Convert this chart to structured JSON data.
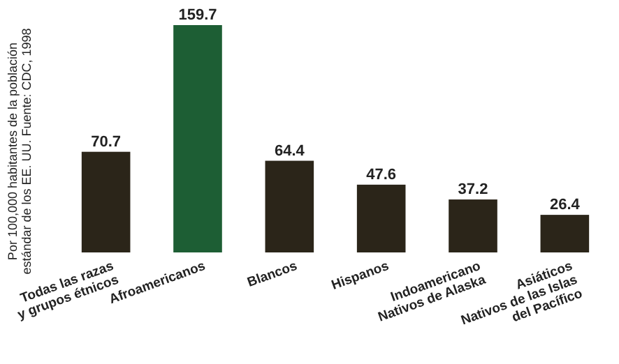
{
  "chart_data": {
    "type": "bar",
    "ylabel": "Por 100,000 habitantes de la población\nestándar de los EE. UU. Fuente: CDC, 1998",
    "categories": [
      "Todas las razas\ny grupos étnicos",
      "Afroamericanos",
      "Blancos",
      "Hispanos",
      "Indoamericano\nNativos de Alaska",
      "Asiáticos\nNativos de las Islas\ndel Pacífico"
    ],
    "values": [
      70.7,
      159.7,
      64.4,
      47.6,
      37.2,
      26.4
    ],
    "colors": [
      "#2b2519",
      "#1d5e34",
      "#2b2519",
      "#2b2519",
      "#2b2519",
      "#2b2519"
    ],
    "data_labels": true
  }
}
